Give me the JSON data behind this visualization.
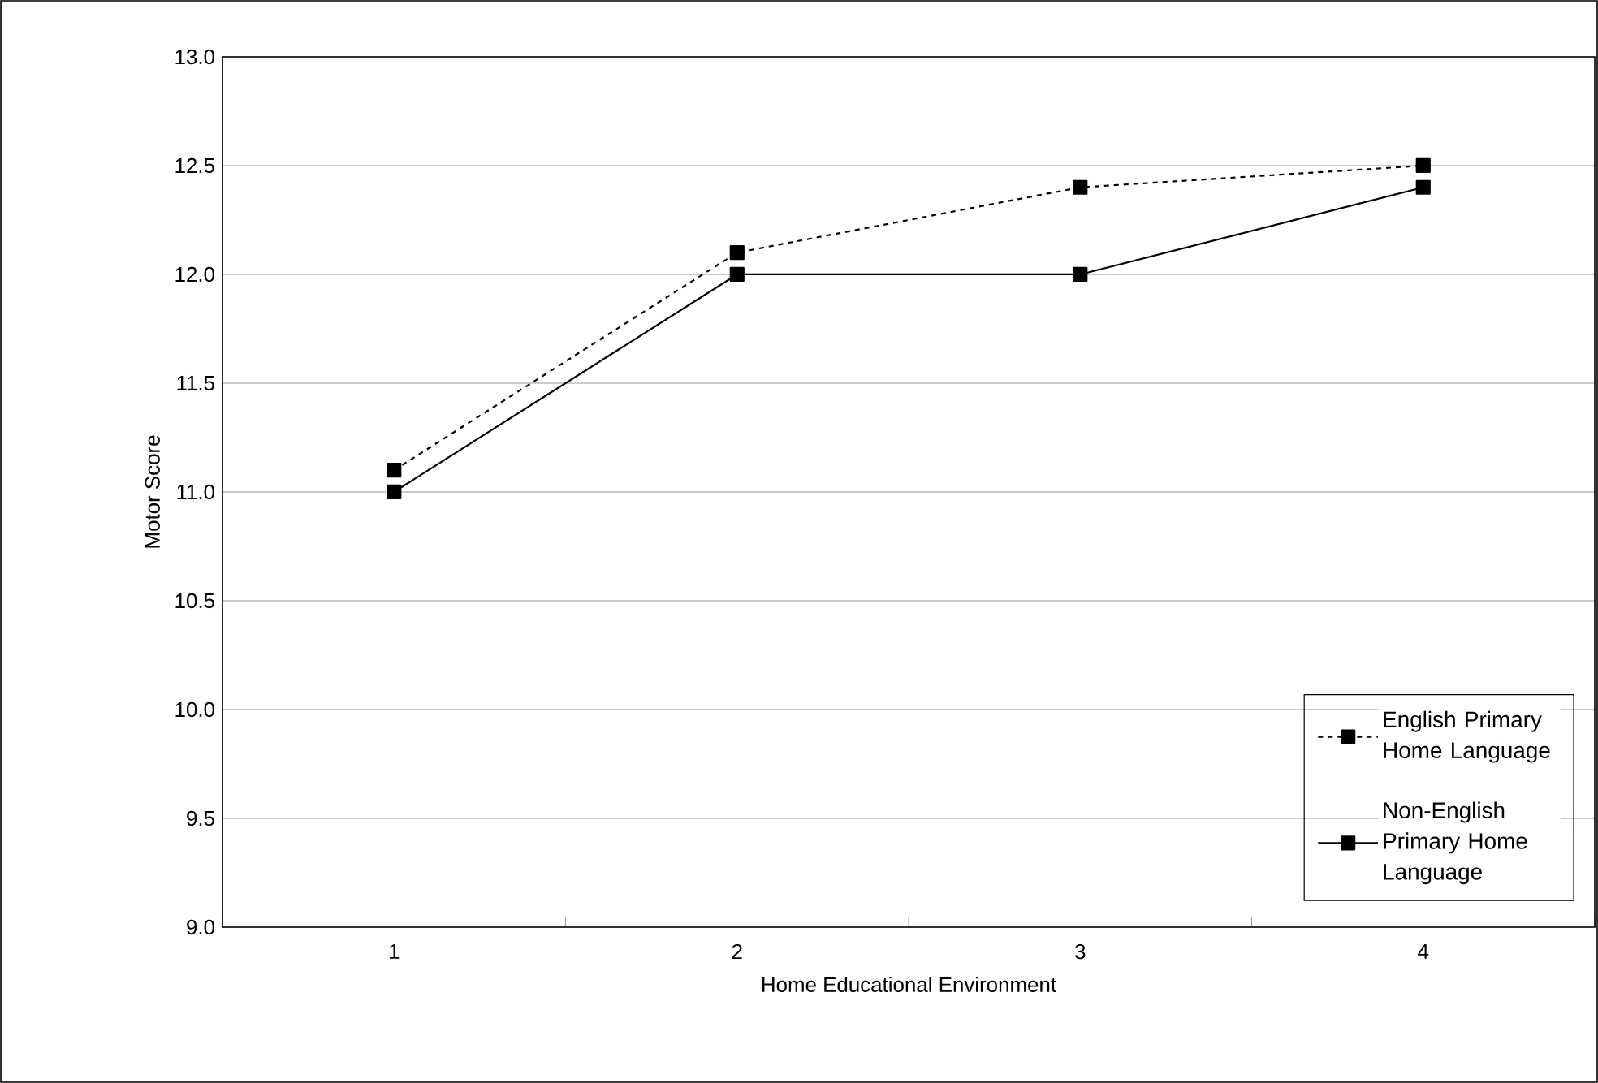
{
  "chart_data": {
    "type": "line",
    "xlabel": "Home Educational Environment",
    "ylabel": "Motor Score",
    "categories": [
      "1",
      "2",
      "3",
      "4"
    ],
    "series": [
      {
        "name": "English Primary Home Language",
        "color": "#000000",
        "line_style": "dashed",
        "values": [
          11.1,
          12.1,
          12.4,
          12.5
        ]
      },
      {
        "name": "Non-English Primary Home Language",
        "color": "#000000",
        "line_style": "solid",
        "values": [
          11.0,
          12.0,
          12.0,
          12.4
        ]
      }
    ],
    "ylim": [
      9,
      13
    ],
    "yticks": [
      {
        "value": 9,
        "label": "9.0"
      },
      {
        "value": 9.5,
        "label": "9.5"
      },
      {
        "value": 10,
        "label": "10.0"
      },
      {
        "value": 10.5,
        "label": "10.5"
      },
      {
        "value": 11,
        "label": "11.0"
      },
      {
        "value": 11.5,
        "label": "11.5"
      },
      {
        "value": 12,
        "label": "12.0"
      },
      {
        "value": 12.5,
        "label": "12.5"
      },
      {
        "value": 13,
        "label": "13.0"
      }
    ],
    "grid": "y",
    "legend": "bottom right",
    "marker": "square"
  }
}
